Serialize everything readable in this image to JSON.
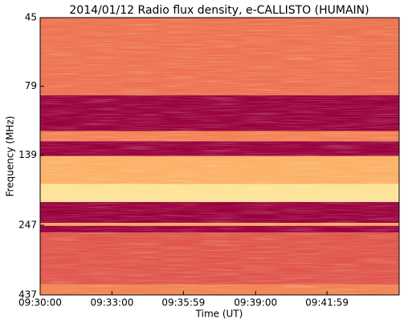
{
  "chart_data": {
    "type": "spectrogram",
    "title": "2014/01/12  Radio flux density, e-CALLISTO (HUMAIN)",
    "xlabel": "Time (UT)",
    "ylabel": "Frequency (MHz)",
    "xlim": [
      34200,
      35100
    ],
    "xticks": [
      {
        "value": 34200,
        "label": "09:30:00"
      },
      {
        "value": 34380,
        "label": "09:33:00"
      },
      {
        "value": 34559,
        "label": "09:35:59"
      },
      {
        "value": 34740,
        "label": "09:39:00"
      },
      {
        "value": 34919,
        "label": "09:41:59"
      }
    ],
    "ylim": [
      45,
      437
    ],
    "yticks": [
      45,
      79,
      139,
      247,
      437
    ],
    "ylog": true,
    "yinverted": true,
    "band_edges": [
      45,
      85,
      114,
      124,
      140,
      176,
      204,
      242,
      248,
      262,
      401,
      437
    ],
    "band_levels": [
      0.45,
      0.0,
      0.5,
      0.0,
      0.65,
      0.85,
      0.0,
      0.6,
      0.0,
      0.35,
      0.5
    ],
    "colormap": [
      "#99003f",
      "#c62c4a",
      "#e8624d",
      "#fba25b",
      "#fdd98a",
      "#ffffc0"
    ]
  }
}
